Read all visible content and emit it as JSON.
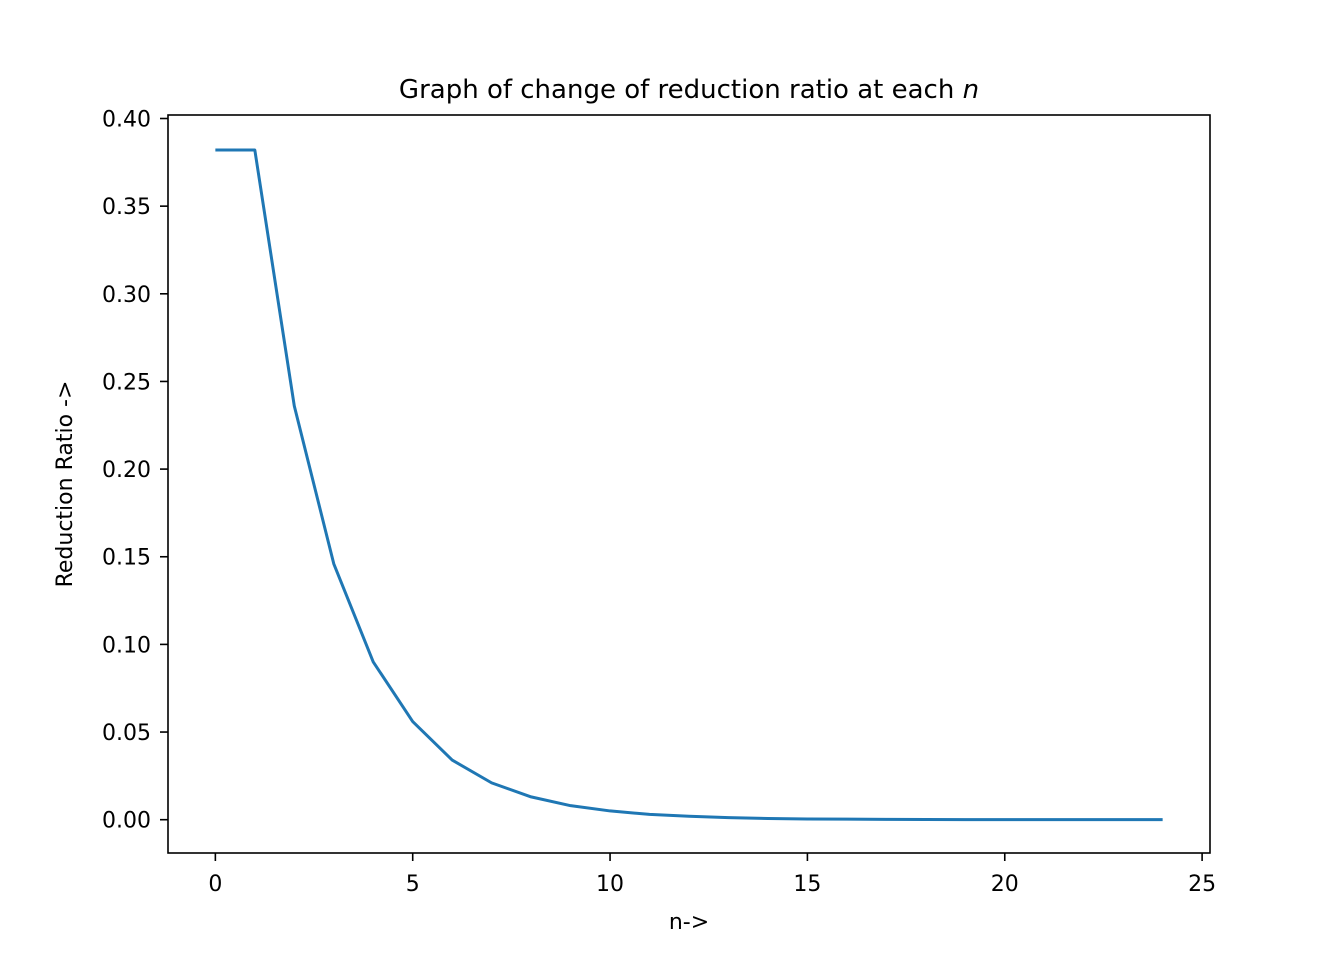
{
  "chart_data": {
    "type": "line",
    "title": "Graph of change of reduction ratio at each ",
    "title_variable": "n",
    "xlabel": "n->",
    "ylabel": "Reduction Ratio ->",
    "xlim": [
      -1.2,
      25.2
    ],
    "ylim": [
      -0.019,
      0.402
    ],
    "x_ticks": [
      0,
      5,
      10,
      15,
      20,
      25
    ],
    "y_ticks": [
      0.0,
      0.05,
      0.1,
      0.15,
      0.2,
      0.25,
      0.3,
      0.35,
      0.4
    ],
    "x_tick_labels": [
      "0",
      "5",
      "10",
      "15",
      "20",
      "25"
    ],
    "y_tick_labels": [
      "0.00",
      "0.05",
      "0.10",
      "0.15",
      "0.20",
      "0.25",
      "0.30",
      "0.35",
      "0.40"
    ],
    "grid": false,
    "series": [
      {
        "color": "#1f77b4",
        "x": [
          0,
          1,
          2,
          3,
          4,
          5,
          6,
          7,
          8,
          9,
          10,
          11,
          12,
          13,
          14,
          15,
          16,
          17,
          18,
          19,
          20,
          21,
          22,
          23,
          24
        ],
        "y": [
          0.382,
          0.382,
          0.236,
          0.146,
          0.09,
          0.056,
          0.034,
          0.021,
          0.013,
          0.008,
          0.005,
          0.003,
          0.002,
          0.0012,
          0.0007,
          0.0004,
          0.0003,
          0.0002,
          0.0001,
          6e-05,
          4e-05,
          2e-05,
          1e-05,
          1e-05,
          1e-05
        ]
      }
    ]
  }
}
